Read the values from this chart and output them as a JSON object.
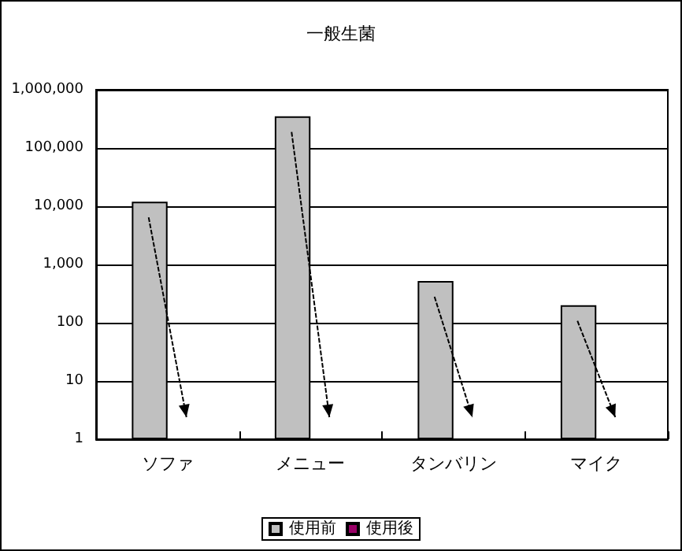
{
  "chart_data": {
    "type": "bar",
    "title": "一般生菌",
    "categories": [
      "ソファ",
      "メニュー",
      "タンバリン",
      "マイク"
    ],
    "series": [
      {
        "name": "使用前",
        "color": "#c0c0c0",
        "values": [
          12000,
          350000,
          520,
          200
        ]
      },
      {
        "name": "使用後",
        "color": "#990066",
        "values": [
          null,
          null,
          null,
          null
        ]
      }
    ],
    "log": true,
    "ylim": [
      1,
      1000000
    ],
    "yticks": [
      {
        "value": 1,
        "label": "1"
      },
      {
        "value": 10,
        "label": "10"
      },
      {
        "value": 100,
        "label": "100"
      },
      {
        "value": 1000,
        "label": "1,000"
      },
      {
        "value": 10000,
        "label": "10,000"
      },
      {
        "value": 100000,
        "label": "100,000"
      },
      {
        "value": 1000000,
        "label": "1,000,000"
      }
    ],
    "grid": "y",
    "legend": "bottom"
  }
}
